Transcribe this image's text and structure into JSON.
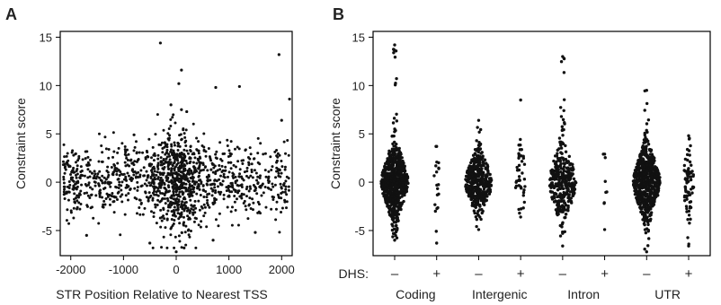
{
  "panels": [
    {
      "label": "A"
    },
    {
      "label": "B"
    }
  ],
  "chart_data": [
    {
      "type": "scatter",
      "panel": "A",
      "xlabel": "STR Position Relative to Nearest TSS",
      "ylabel": "Constraint score",
      "xlim": [
        -2200,
        2200
      ],
      "ylim": [
        -7.6,
        15.6
      ],
      "xticks": [
        -2000,
        -1000,
        0,
        1000,
        2000
      ],
      "xtick_labels": [
        "-2000",
        "-1000",
        "0",
        "1000",
        "2000"
      ],
      "yticks": [
        -5,
        0,
        5,
        10,
        15
      ],
      "ytick_labels": [
        "-5",
        "0",
        "5",
        "10",
        "15"
      ],
      "grid": false,
      "point_color": "#111111",
      "points_highlight": [
        {
          "x": -300,
          "y": 14.4
        },
        {
          "x": 100,
          "y": 11.6
        },
        {
          "x": 50,
          "y": 10.2
        },
        {
          "x": 1950,
          "y": 13.2
        },
        {
          "x": 750,
          "y": 9.8
        },
        {
          "x": 1200,
          "y": 9.9
        },
        {
          "x": 2150,
          "y": 8.6
        },
        {
          "x": -100,
          "y": 8.0
        },
        {
          "x": 100,
          "y": 7.5
        },
        {
          "x": 200,
          "y": 7.3
        },
        {
          "x": 2000,
          "y": 6.4
        },
        {
          "x": -800,
          "y": 4.9
        },
        {
          "x": 0,
          "y": -7.2
        },
        {
          "x": 150,
          "y": -6.8
        },
        {
          "x": -1700,
          "y": -5.5
        },
        {
          "x": 1500,
          "y": -5.2
        },
        {
          "x": -500,
          "y": -6.3
        },
        {
          "x": 700,
          "y": -6.0
        }
      ],
      "bulk_distribution": {
        "n": 1400,
        "x_range": [
          -2150,
          2150
        ],
        "x_center": 50,
        "y_mean": 0.1,
        "y_sd": 1.9
      }
    },
    {
      "type": "scatter",
      "panel": "B",
      "ylabel": "Constraint score",
      "ylim": [
        -7.6,
        15.6
      ],
      "yticks": [
        -5,
        0,
        5,
        10,
        15
      ],
      "ytick_labels": [
        "-5",
        "0",
        "5",
        "10",
        "15"
      ],
      "grid": false,
      "dhs_label": "DHS:",
      "categories": [
        "Coding",
        "Intergenic",
        "Intron",
        "UTR"
      ],
      "columns": [
        {
          "category": "Coding",
          "dhs": "–",
          "n": 700,
          "y_min": -6.0,
          "y_max": 14.2,
          "y_sd": 1.9
        },
        {
          "category": "Coding",
          "dhs": "+",
          "n": 20,
          "y_min": -6.3,
          "y_max": 3.7,
          "y_sd": 2.2
        },
        {
          "category": "Intergenic",
          "dhs": "–",
          "n": 420,
          "y_min": -4.9,
          "y_max": 6.4,
          "y_sd": 1.6
        },
        {
          "category": "Intergenic",
          "dhs": "+",
          "n": 45,
          "y_min": -3.6,
          "y_max": 8.5,
          "y_sd": 2.0
        },
        {
          "category": "Intron",
          "dhs": "–",
          "n": 340,
          "y_min": -6.6,
          "y_max": 13.0,
          "y_sd": 2.0
        },
        {
          "category": "Intron",
          "dhs": "+",
          "n": 9,
          "y_min": -4.9,
          "y_max": 2.9,
          "y_sd": 2.2
        },
        {
          "category": "UTR",
          "dhs": "–",
          "n": 650,
          "y_min": -7.2,
          "y_max": 9.5,
          "y_sd": 1.9
        },
        {
          "category": "UTR",
          "dhs": "+",
          "n": 75,
          "y_min": -6.6,
          "y_max": 4.8,
          "y_sd": 2.0
        }
      ]
    }
  ]
}
